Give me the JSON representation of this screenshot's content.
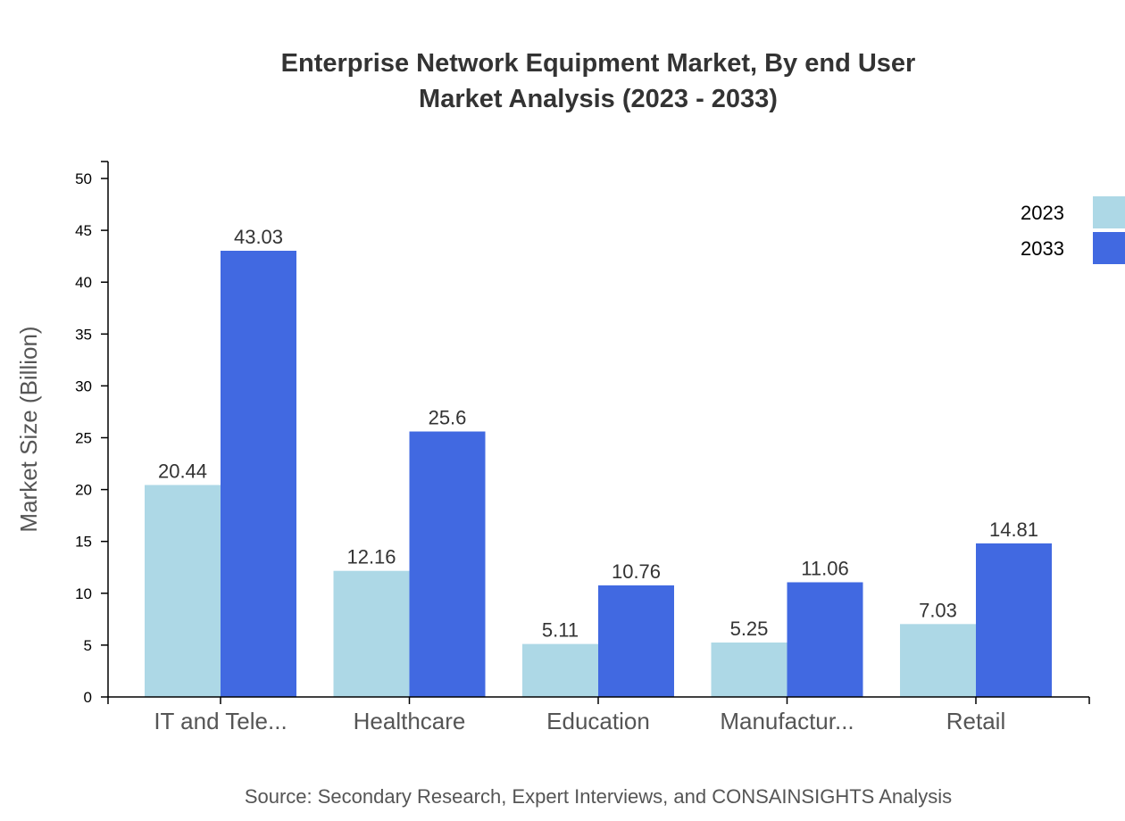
{
  "chart_data": {
    "type": "bar",
    "title": "Enterprise Network Equipment Market, By end User",
    "subtitle": "Market Analysis (2023 - 2033)",
    "xlabel": "",
    "ylabel": "Market Size (Billion)",
    "ylim": [
      0,
      50
    ],
    "yticks": [
      0,
      5,
      10,
      15,
      20,
      25,
      30,
      35,
      40,
      45,
      50
    ],
    "grid": false,
    "legend_position": "top-right",
    "categories": [
      "IT and Tele...",
      "Healthcare",
      "Education",
      "Manufactur...",
      "Retail"
    ],
    "series": [
      {
        "name": "2023",
        "color": "#add8e6",
        "values": [
          20.44,
          12.16,
          5.11,
          5.25,
          7.03
        ]
      },
      {
        "name": "2033",
        "color": "#4169e1",
        "values": [
          43.03,
          25.6,
          10.76,
          11.06,
          14.81
        ]
      }
    ],
    "source": "Source: Secondary Research, Expert Interviews, and CONSAINSIGHTS Analysis"
  }
}
